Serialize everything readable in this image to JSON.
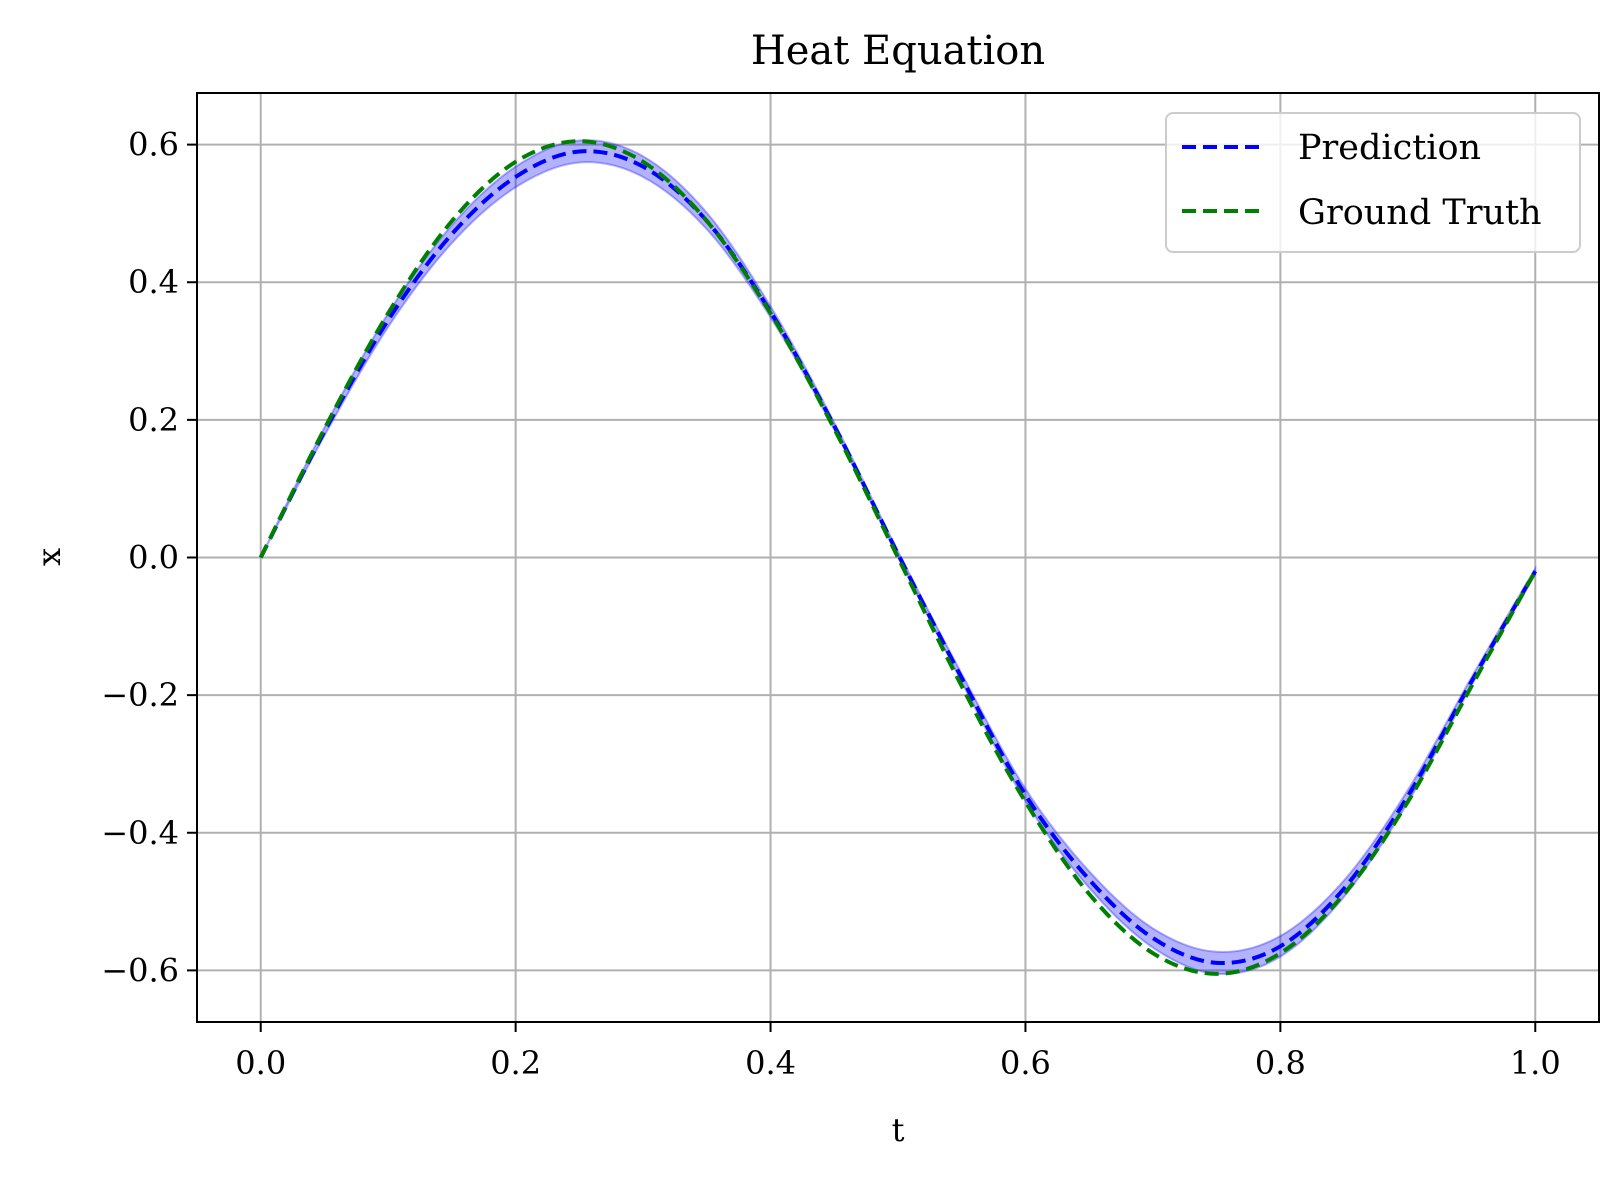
{
  "chart_data": {
    "type": "line",
    "title": "Heat Equation",
    "xlabel": "t",
    "ylabel": "x",
    "xlim": [
      -0.05,
      1.05
    ],
    "ylim": [
      -0.675,
      0.675
    ],
    "xticks": [
      0.0,
      0.2,
      0.4,
      0.6,
      0.8,
      1.0
    ],
    "xtick_labels": [
      "0.0",
      "0.2",
      "0.4",
      "0.6",
      "0.8",
      "1.0"
    ],
    "yticks": [
      0.6,
      0.4,
      0.2,
      0.0,
      -0.2,
      -0.4,
      -0.6
    ],
    "ytick_labels": [
      "0.6",
      "0.4",
      "0.2",
      "0.0",
      "−0.2",
      "−0.4",
      "−0.6"
    ],
    "grid": true,
    "legend_position": "top-right",
    "x": [
      0.0,
      0.05,
      0.1,
      0.15,
      0.2,
      0.25,
      0.3,
      0.35,
      0.4,
      0.45,
      0.5,
      0.55,
      0.6,
      0.65,
      0.7,
      0.75,
      0.8,
      0.85,
      0.9,
      0.95,
      1.0
    ],
    "series": [
      {
        "name": "Prediction",
        "color": "#0000ff",
        "style": "dashed",
        "values": [
          0.0,
          0.183,
          0.345,
          0.47,
          0.553,
          0.59,
          0.568,
          0.489,
          0.357,
          0.191,
          0.005,
          -0.175,
          -0.345,
          -0.468,
          -0.553,
          -0.589,
          -0.565,
          -0.481,
          -0.347,
          -0.18,
          -0.02
        ],
        "band_halfwidth": [
          0.0,
          0.006,
          0.01,
          0.013,
          0.015,
          0.016,
          0.015,
          0.012,
          0.008,
          0.005,
          0.004,
          0.006,
          0.009,
          0.012,
          0.014,
          0.016,
          0.015,
          0.012,
          0.009,
          0.006,
          0.004
        ],
        "band_color": "#0000ff"
      },
      {
        "name": "Ground Truth",
        "color": "#008000",
        "style": "dashed",
        "values": [
          0.0,
          0.187,
          0.355,
          0.489,
          0.575,
          0.605,
          0.575,
          0.489,
          0.355,
          0.187,
          0.0,
          -0.187,
          -0.355,
          -0.489,
          -0.575,
          -0.605,
          -0.575,
          -0.489,
          -0.355,
          -0.187,
          -0.02
        ]
      }
    ]
  }
}
